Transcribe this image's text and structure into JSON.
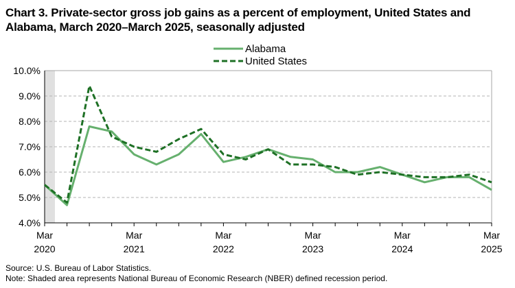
{
  "chart_data": {
    "type": "line",
    "title": "Chart 3. Private-sector gross job gains as a percent of employment, United States and Alabama, March 2020–March 2025, seasonally adjusted",
    "x": [
      "Mar 2020",
      "Jun 2020",
      "Sep 2020",
      "Dec 2020",
      "Mar 2021",
      "Jun 2021",
      "Sep 2021",
      "Dec 2021",
      "Mar 2022",
      "Jun 2022",
      "Sep 2022",
      "Dec 2022",
      "Mar 2023",
      "Jun 2023",
      "Sep 2023",
      "Dec 2023",
      "Mar 2024",
      "Jun 2024",
      "Sep 2024",
      "Dec 2024",
      "Mar 2025"
    ],
    "x_tick_labels": [
      [
        "Mar",
        "2020"
      ],
      [
        "Mar",
        "2021"
      ],
      [
        "Mar",
        "2022"
      ],
      [
        "Mar",
        "2023"
      ],
      [
        "Mar",
        "2024"
      ],
      [
        "Mar",
        "2025"
      ]
    ],
    "y_tick_labels": [
      "4.0%",
      "5.0%",
      "6.0%",
      "7.0%",
      "8.0%",
      "9.0%",
      "10.0%"
    ],
    "ylim": [
      4,
      10
    ],
    "grid": "horizontal dashed",
    "legend_placement": "top-center",
    "recession_shading": {
      "start": "Mar 2020",
      "end": "Apr 2020",
      "color": "#e0e0e0"
    },
    "series": [
      {
        "name": "Alabama",
        "color": "#66b06e",
        "style": "solid",
        "values": [
          5.5,
          4.7,
          7.8,
          7.6,
          6.7,
          6.3,
          6.7,
          7.5,
          6.4,
          6.6,
          6.9,
          6.6,
          6.5,
          6.0,
          6.0,
          6.2,
          5.9,
          5.6,
          5.8,
          5.8,
          5.3
        ]
      },
      {
        "name": "United States",
        "color": "#1e7025",
        "style": "dashed",
        "values": [
          5.5,
          4.8,
          9.4,
          7.4,
          7.0,
          6.8,
          7.3,
          7.7,
          6.7,
          6.5,
          6.9,
          6.3,
          6.3,
          6.2,
          5.9,
          6.0,
          5.9,
          5.8,
          5.8,
          5.9,
          5.6
        ]
      }
    ]
  },
  "footer": {
    "source": "Source: U.S. Bureau of Labor Statistics.",
    "note": "Note: Shaded area represents National Bureau of Economic Research (NBER) defined recession period."
  }
}
